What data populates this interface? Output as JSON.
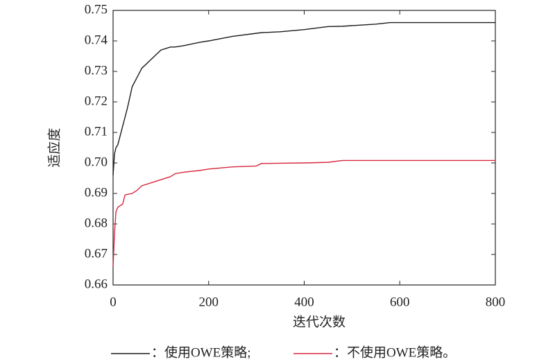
{
  "chart_data": {
    "type": "line",
    "xlabel": "迭代次数",
    "ylabel": "适应度",
    "x": [
      0,
      3,
      6,
      10,
      20,
      25,
      30,
      40,
      50,
      60,
      80,
      100,
      120,
      130,
      150,
      180,
      200,
      250,
      300,
      310,
      350,
      400,
      450,
      480,
      500,
      550,
      580,
      600,
      700,
      800
    ],
    "series": [
      {
        "name": "：使用OWE策略;",
        "color": "#1a1a1a",
        "values": [
          0.696,
          0.703,
          0.705,
          0.706,
          0.712,
          0.715,
          0.718,
          0.725,
          0.728,
          0.731,
          0.734,
          0.737,
          0.738,
          0.738,
          0.7385,
          0.7395,
          0.74,
          0.7415,
          0.7425,
          0.7427,
          0.743,
          0.7437,
          0.7447,
          0.7448,
          0.745,
          0.7455,
          0.746,
          0.746,
          0.746,
          0.746
        ]
      },
      {
        "name": "：不使用OWE策略。",
        "color": "#d7263d",
        "values": [
          0.666,
          0.677,
          0.684,
          0.6855,
          0.6865,
          0.6895,
          0.6897,
          0.69,
          0.691,
          0.6925,
          0.6935,
          0.6945,
          0.6955,
          0.6965,
          0.697,
          0.6975,
          0.698,
          0.6987,
          0.699,
          0.6998,
          0.6999,
          0.7,
          0.7002,
          0.7008,
          0.7008,
          0.7008,
          0.7008,
          0.7008,
          0.7008,
          0.7008
        ]
      }
    ],
    "xlim": [
      0,
      800
    ],
    "xticks": [
      0,
      200,
      400,
      600,
      800
    ],
    "ylim": [
      0.66,
      0.75
    ],
    "yticks": [
      0.66,
      0.67,
      0.68,
      0.69,
      {
        "value": 0.7,
        "label": "0.70"
      },
      0.71,
      0.72,
      0.73,
      0.74,
      0.75
    ]
  }
}
